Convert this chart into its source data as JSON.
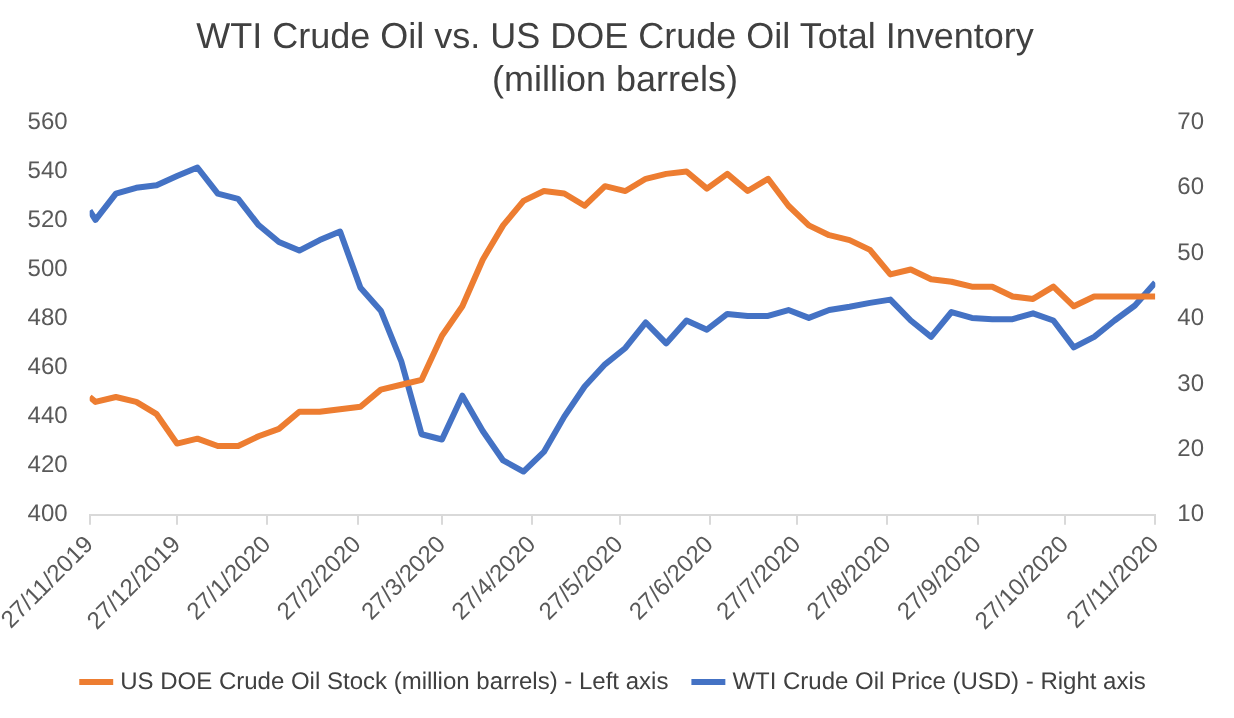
{
  "chart_data": {
    "type": "line",
    "title": "WTI Crude Oil vs. US DOE Crude Oil Total Inventory (million barrels)",
    "x": [
      "2019-11-27",
      "2019-11-29",
      "2019-12-06",
      "2019-12-13",
      "2019-12-20",
      "2019-12-27",
      "2020-01-03",
      "2020-01-10",
      "2020-01-17",
      "2020-01-24",
      "2020-01-31",
      "2020-02-07",
      "2020-02-14",
      "2020-02-21",
      "2020-02-28",
      "2020-03-06",
      "2020-03-13",
      "2020-03-20",
      "2020-03-27",
      "2020-04-03",
      "2020-04-10",
      "2020-04-17",
      "2020-04-24",
      "2020-05-01",
      "2020-05-08",
      "2020-05-15",
      "2020-05-22",
      "2020-05-29",
      "2020-06-05",
      "2020-06-12",
      "2020-06-19",
      "2020-06-26",
      "2020-07-03",
      "2020-07-10",
      "2020-07-17",
      "2020-07-24",
      "2020-07-31",
      "2020-08-07",
      "2020-08-14",
      "2020-08-21",
      "2020-08-28",
      "2020-09-04",
      "2020-09-11",
      "2020-09-18",
      "2020-09-25",
      "2020-10-02",
      "2020-10-09",
      "2020-10-16",
      "2020-10-23",
      "2020-10-30",
      "2020-11-06",
      "2020-11-13",
      "2020-11-20",
      "2020-11-27"
    ],
    "series": [
      {
        "name": "US DOE Crude Oil Stock (million barrels) - Left axis",
        "color": "#ed7d31",
        "values": [
          448,
          446,
          448,
          446,
          441,
          429,
          431,
          428,
          428,
          432,
          435,
          442,
          442,
          443,
          444,
          451,
          453,
          455,
          473,
          485,
          504,
          518,
          528,
          532,
          531,
          526,
          534,
          532,
          537,
          539,
          540,
          533,
          539,
          532,
          537,
          526,
          518,
          514,
          512,
          508,
          498,
          500,
          496,
          495,
          493,
          493,
          489,
          488,
          493,
          485,
          489,
          489,
          489,
          489
        ]
      },
      {
        "name": "WTI Crude Oil Price (USD) - Right axis",
        "color": "#4472c4",
        "axis": "y2",
        "values": [
          56.5,
          55.1,
          59.1,
          60,
          60.4,
          61.8,
          63.1,
          59.1,
          58.3,
          54.3,
          51.7,
          50.4,
          52,
          53.3,
          44.7,
          41.2,
          33.5,
          22.3,
          21.5,
          28.2,
          22.8,
          18.3,
          16.6,
          19.6,
          25,
          29.6,
          33,
          35.5,
          39.4,
          36.2,
          39.7,
          38.3,
          40.7,
          40.4,
          40.4,
          41.3,
          40.1,
          41.3,
          41.8,
          42.4,
          42.9,
          39.7,
          37.2,
          41,
          40.1,
          39.9,
          39.9,
          40.8,
          39.7,
          35.6,
          37.2,
          39.7,
          42,
          45.5
        ]
      }
    ],
    "xlim": [
      "2019-11-27",
      "2020-11-27"
    ],
    "xticks": [
      {
        "value": "2019-11-27",
        "label": "27/11/2019"
      },
      {
        "value": "2019-12-27",
        "label": "27/12/2019"
      },
      {
        "value": "2020-01-27",
        "label": "27/1/2020"
      },
      {
        "value": "2020-02-27",
        "label": "27/2/2020"
      },
      {
        "value": "2020-03-27",
        "label": "27/3/2020"
      },
      {
        "value": "2020-04-27",
        "label": "27/4/2020"
      },
      {
        "value": "2020-05-27",
        "label": "27/5/2020"
      },
      {
        "value": "2020-06-27",
        "label": "27/6/2020"
      },
      {
        "value": "2020-07-27",
        "label": "27/7/2020"
      },
      {
        "value": "2020-08-27",
        "label": "27/8/2020"
      },
      {
        "value": "2020-09-27",
        "label": "27/9/2020"
      },
      {
        "value": "2020-10-27",
        "label": "27/10/2020"
      },
      {
        "value": "2020-11-27",
        "label": "27/11/2020"
      }
    ],
    "ylim": [
      400,
      560
    ],
    "yticks": [
      400,
      420,
      440,
      460,
      480,
      500,
      520,
      540,
      560
    ],
    "y2lim": [
      10,
      70
    ],
    "y2ticks": [
      10,
      20,
      30,
      40,
      50,
      60,
      70
    ],
    "grid": false,
    "legend": "bottom",
    "marker": "none",
    "line_style": "solid"
  }
}
